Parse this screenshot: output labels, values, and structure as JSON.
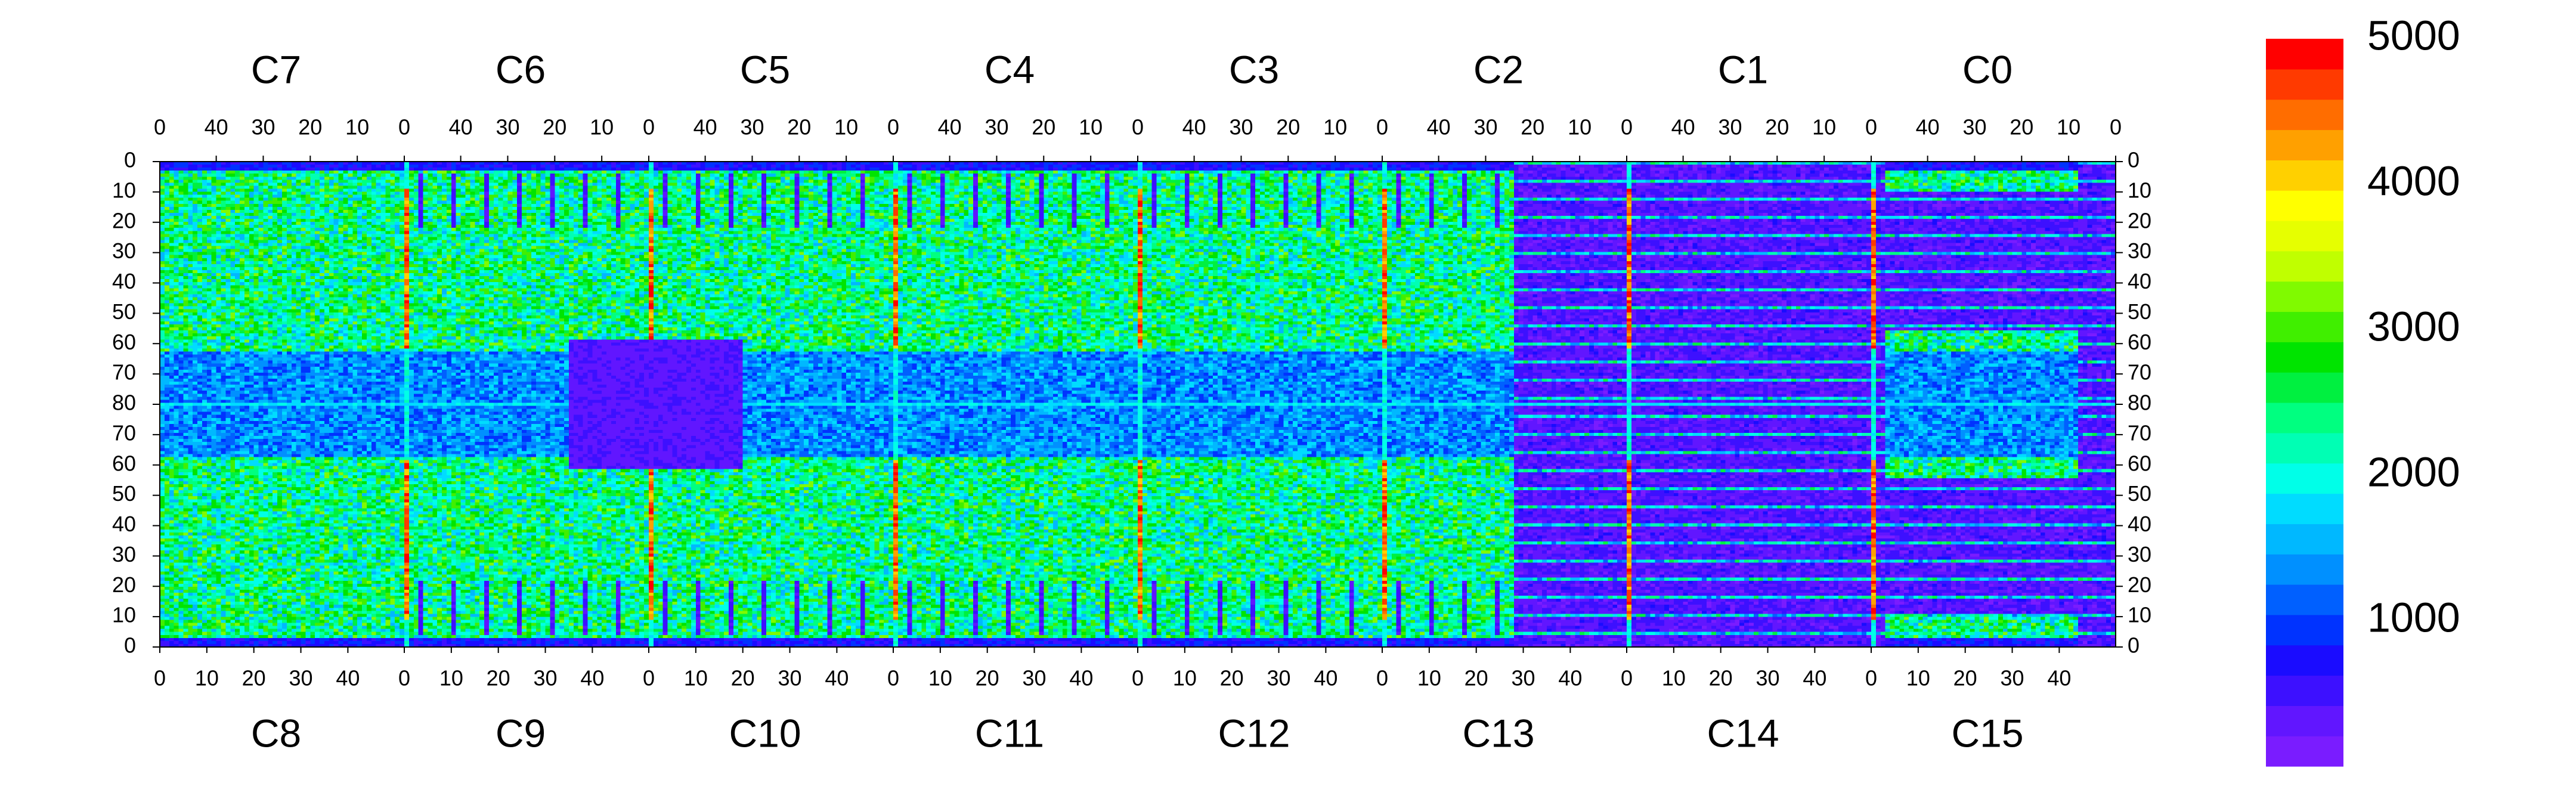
{
  "chart_data": {
    "type": "heatmap",
    "title": "",
    "colorbar": {
      "min": 0,
      "max": 5000,
      "tick_labels": [
        "1000",
        "2000",
        "3000",
        "4000",
        "5000"
      ],
      "tick_values": [
        1000,
        2000,
        3000,
        4000,
        5000
      ],
      "colors": [
        "#7a1cff",
        "#6116ff",
        "#3d10ff",
        "#1a0cff",
        "#0033ff",
        "#0060ff",
        "#0090ff",
        "#00b8ff",
        "#00dcff",
        "#00ffe8",
        "#00ffb4",
        "#00ff80",
        "#00f040",
        "#00e400",
        "#40ef00",
        "#80fa00",
        "#c0ff00",
        "#e6ff00",
        "#ffff00",
        "#ffd000",
        "#ffa000",
        "#ff6d00",
        "#ff3a00",
        "#ff0000"
      ]
    },
    "top_chip_labels": [
      "C7",
      "C6",
      "C5",
      "C4",
      "C3",
      "C2",
      "C1",
      "C0"
    ],
    "bottom_chip_labels": [
      "C8",
      "C9",
      "C10",
      "C11",
      "C12",
      "C13",
      "C14",
      "C15"
    ],
    "top_axis_ticks": [
      [
        "40",
        "30",
        "20",
        "10",
        "0"
      ],
      [
        "40",
        "30",
        "20",
        "10",
        "0"
      ],
      [
        "40",
        "30",
        "20",
        "10",
        "0"
      ],
      [
        "40",
        "30",
        "20",
        "10",
        "0"
      ],
      [
        "40",
        "30",
        "20",
        "10",
        "0"
      ],
      [
        "40",
        "30",
        "20",
        "10",
        "0"
      ],
      [
        "40",
        "30",
        "20",
        "10",
        "0"
      ],
      [
        "40",
        "30",
        "20",
        "10",
        "0"
      ]
    ],
    "top_axis_last": "0",
    "bottom_axis_ticks": [
      [
        "0",
        "10",
        "20",
        "30",
        "40"
      ],
      [
        "0",
        "10",
        "20",
        "30",
        "40"
      ],
      [
        "0",
        "10",
        "20",
        "30",
        "40"
      ],
      [
        "0",
        "10",
        "20",
        "30",
        "40"
      ],
      [
        "0",
        "10",
        "20",
        "30",
        "40"
      ],
      [
        "0",
        "10",
        "20",
        "30",
        "40"
      ],
      [
        "0",
        "10",
        "20",
        "30",
        "40"
      ],
      [
        "0",
        "10",
        "20",
        "30",
        "40"
      ]
    ],
    "y_axis_ticks": [
      "0",
      "10",
      "20",
      "30",
      "40",
      "50",
      "60",
      "70",
      "80",
      "70",
      "60",
      "50",
      "40",
      "30",
      "20",
      "10",
      "0"
    ],
    "grid": {
      "chips_per_row": 8,
      "columns_per_chip": 52,
      "rows_per_half": 80
    }
  }
}
